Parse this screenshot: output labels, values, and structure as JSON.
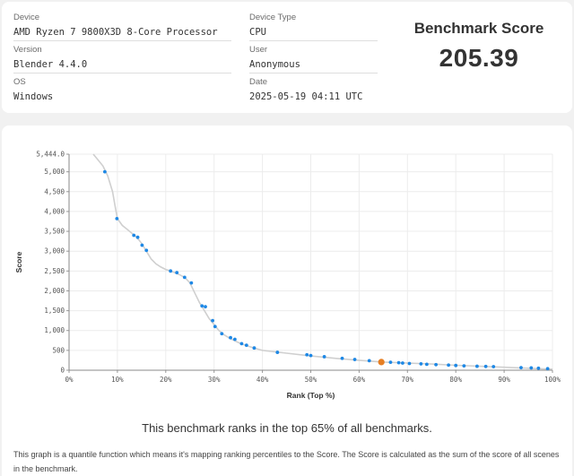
{
  "info": {
    "device_label": "Device",
    "device_value": "AMD Ryzen 7 9800X3D 8-Core Processor",
    "device_type_label": "Device Type",
    "device_type_value": "CPU",
    "version_label": "Version",
    "version_value": "Blender 4.4.0",
    "user_label": "User",
    "user_value": "Anonymous",
    "os_label": "OS",
    "os_value": "Windows",
    "date_label": "Date",
    "date_value": "2025-05-19 04:11 UTC"
  },
  "score": {
    "title": "Benchmark Score",
    "value": "205.39"
  },
  "chart_data": {
    "type": "scatter",
    "xlabel": "Rank (Top %)",
    "ylabel": "Score",
    "xlim": [
      0,
      100
    ],
    "ylim": [
      0,
      5444
    ],
    "x_ticks": [
      "0%",
      "10%",
      "20%",
      "30%",
      "40%",
      "50%",
      "60%",
      "70%",
      "80%",
      "90%",
      "100%"
    ],
    "y_ticks": [
      "0",
      "500",
      "1,000",
      "1,500",
      "2,000",
      "2,500",
      "3,000",
      "3,500",
      "4,000",
      "4,500",
      "5,000",
      "5,444.0"
    ],
    "y_tick_values": [
      0,
      500,
      1000,
      1500,
      2000,
      2500,
      3000,
      3500,
      4000,
      4500,
      5000,
      5444
    ],
    "grid": true,
    "colors": {
      "curve": "#cfcfcf",
      "point": "#1e88e5",
      "highlight": "#e67e22",
      "grid": "#ececec"
    },
    "curve": [
      [
        5,
        5444
      ],
      [
        6,
        5300
      ],
      [
        7,
        5150
      ],
      [
        8,
        4900
      ],
      [
        9,
        4500
      ],
      [
        9.5,
        4150
      ],
      [
        10,
        3820
      ],
      [
        11,
        3650
      ],
      [
        12,
        3550
      ],
      [
        13,
        3450
      ],
      [
        14,
        3350
      ],
      [
        15,
        3200
      ],
      [
        16,
        3000
      ],
      [
        17,
        2800
      ],
      [
        18,
        2680
      ],
      [
        19,
        2600
      ],
      [
        20,
        2540
      ],
      [
        21,
        2500
      ],
      [
        22,
        2450
      ],
      [
        23,
        2400
      ],
      [
        24,
        2330
      ],
      [
        25,
        2200
      ],
      [
        26,
        1950
      ],
      [
        27,
        1700
      ],
      [
        28,
        1500
      ],
      [
        29,
        1300
      ],
      [
        30,
        1150
      ],
      [
        31,
        1000
      ],
      [
        32,
        900
      ],
      [
        33,
        820
      ],
      [
        34,
        760
      ],
      [
        35,
        700
      ],
      [
        36,
        650
      ],
      [
        37,
        610
      ],
      [
        38,
        570
      ],
      [
        40,
        500
      ],
      [
        45,
        430
      ],
      [
        50,
        360
      ],
      [
        55,
        300
      ],
      [
        60,
        250
      ],
      [
        65,
        205
      ],
      [
        70,
        180
      ],
      [
        75,
        155
      ],
      [
        80,
        125
      ],
      [
        85,
        100
      ],
      [
        90,
        75
      ],
      [
        95,
        50
      ],
      [
        100,
        25
      ]
    ],
    "points": [
      [
        7.4,
        5000
      ],
      [
        9.9,
        3820
      ],
      [
        13.4,
        3400
      ],
      [
        14.2,
        3350
      ],
      [
        15.1,
        3150
      ],
      [
        16.0,
        3020
      ],
      [
        21.0,
        2500
      ],
      [
        22.3,
        2460
      ],
      [
        23.9,
        2340
      ],
      [
        25.3,
        2200
      ],
      [
        27.5,
        1620
      ],
      [
        28.2,
        1600
      ],
      [
        29.7,
        1250
      ],
      [
        30.2,
        1100
      ],
      [
        31.6,
        920
      ],
      [
        33.4,
        820
      ],
      [
        34.3,
        780
      ],
      [
        35.7,
        670
      ],
      [
        36.7,
        630
      ],
      [
        38.3,
        560
      ],
      [
        43.1,
        450
      ],
      [
        49.2,
        390
      ],
      [
        50.0,
        370
      ],
      [
        52.8,
        340
      ],
      [
        56.5,
        300
      ],
      [
        59.1,
        270
      ],
      [
        62.1,
        240
      ],
      [
        66.5,
        200
      ],
      [
        68.2,
        190
      ],
      [
        69.0,
        180
      ],
      [
        70.4,
        170
      ],
      [
        72.8,
        160
      ],
      [
        74.0,
        150
      ],
      [
        75.9,
        140
      ],
      [
        78.5,
        130
      ],
      [
        80.0,
        120
      ],
      [
        81.7,
        110
      ],
      [
        84.4,
        100
      ],
      [
        86.2,
        95
      ],
      [
        87.8,
        90
      ],
      [
        93.5,
        65
      ],
      [
        95.6,
        60
      ],
      [
        97.1,
        50
      ],
      [
        99.0,
        40
      ]
    ],
    "highlight_point": [
      64.6,
      205.39
    ]
  },
  "rank_text": "This benchmark ranks in the top 65% of all benchmarks.",
  "description": "This graph is a quantile function which means it's mapping ranking percentiles to the Score. The Score is calculated as the sum of the score of all scenes in the benchmark."
}
